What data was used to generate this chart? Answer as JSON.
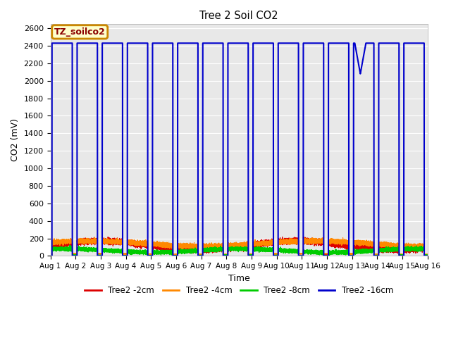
{
  "title": "Tree 2 Soil CO2",
  "ylabel": "CO2 (mV)",
  "xlabel": "Time",
  "ylim": [
    0,
    2650
  ],
  "yticks": [
    0,
    200,
    400,
    600,
    800,
    1000,
    1200,
    1400,
    1600,
    1800,
    2000,
    2200,
    2400,
    2600
  ],
  "xlim_days": [
    0,
    15
  ],
  "xtick_labels": [
    "Aug 1",
    "Aug 2",
    "Aug 3",
    "Aug 4",
    "Aug 5",
    "Aug 6",
    "Aug 7",
    "Aug 8",
    "Aug 9",
    "Aug 10",
    "Aug 11",
    "Aug 12",
    "Aug 13",
    "Aug 14",
    "Aug 15",
    "Aug 16"
  ],
  "fig_bg_color": "#ffffff",
  "plot_bg_color": "#e8e8e8",
  "grid_color": "#ffffff",
  "legend_label": "TZ_soilco2",
  "legend_bg": "#ffffcc",
  "legend_border": "#cc8800",
  "series": [
    {
      "label": "Tree2 -2cm",
      "color": "#dd0000"
    },
    {
      "label": "Tree2 -4cm",
      "color": "#ff8800"
    },
    {
      "label": "Tree2 -8cm",
      "color": "#00cc00"
    },
    {
      "label": "Tree2 -16cm",
      "color": "#0000cc"
    }
  ],
  "blue_high": 2430,
  "blue_dip_value": 2080,
  "num_days": 15
}
